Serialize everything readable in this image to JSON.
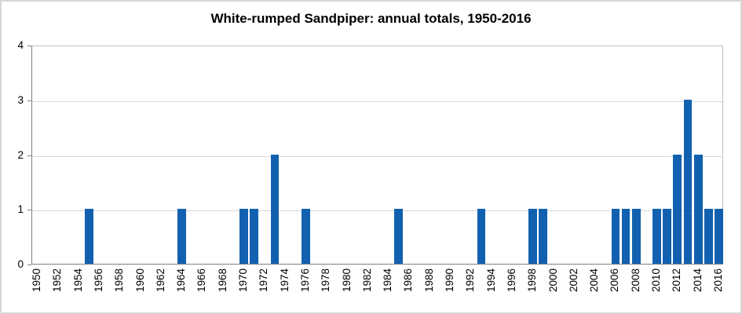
{
  "window": {
    "background": "#FFFFFF",
    "outer_border_color": "#D6D6D6",
    "text_color": "#000000"
  },
  "chart_data": {
    "type": "bar",
    "title": "White-rumped Sandpiper: annual totals, 1950-2016",
    "categories": [
      1950,
      1951,
      1952,
      1953,
      1954,
      1955,
      1956,
      1957,
      1958,
      1959,
      1960,
      1961,
      1962,
      1963,
      1964,
      1965,
      1966,
      1967,
      1968,
      1969,
      1970,
      1971,
      1972,
      1973,
      1974,
      1975,
      1976,
      1977,
      1978,
      1979,
      1980,
      1981,
      1982,
      1983,
      1984,
      1985,
      1986,
      1987,
      1988,
      1989,
      1990,
      1991,
      1992,
      1993,
      1994,
      1995,
      1996,
      1997,
      1998,
      1999,
      2000,
      2001,
      2002,
      2003,
      2004,
      2005,
      2006,
      2007,
      2008,
      2009,
      2010,
      2011,
      2012,
      2013,
      2014,
      2015,
      2016
    ],
    "values": [
      0,
      0,
      0,
      0,
      0,
      1,
      0,
      0,
      0,
      0,
      0,
      0,
      0,
      0,
      1,
      0,
      0,
      0,
      0,
      0,
      1,
      1,
      0,
      2,
      0,
      0,
      1,
      0,
      0,
      0,
      0,
      0,
      0,
      0,
      0,
      1,
      0,
      0,
      0,
      0,
      0,
      0,
      0,
      1,
      0,
      0,
      0,
      0,
      1,
      1,
      0,
      0,
      0,
      0,
      0,
      0,
      1,
      1,
      1,
      0,
      1,
      1,
      2,
      3,
      2,
      1,
      1
    ],
    "xtick_labels": [
      "1950",
      "1952",
      "1954",
      "1956",
      "1958",
      "1960",
      "1962",
      "1964",
      "1966",
      "1968",
      "1970",
      "1972",
      "1974",
      "1976",
      "1978",
      "1980",
      "1982",
      "1984",
      "1986",
      "1988",
      "1990",
      "1992",
      "1994",
      "1996",
      "1998",
      "2000",
      "2002",
      "2004",
      "2006",
      "2008",
      "2010",
      "2012",
      "2014",
      "2016"
    ],
    "yticks": [
      "0",
      "1",
      "2",
      "3",
      "4"
    ],
    "ylim": [
      0,
      4
    ],
    "xlabel": "",
    "ylabel": "",
    "legend": "none",
    "grid": "horizontal",
    "bar_color": "#1261B0",
    "gridline_color": "#D9D9D9",
    "plot_border_color": "#BFBFBF",
    "axis_line_color": "#808080"
  }
}
